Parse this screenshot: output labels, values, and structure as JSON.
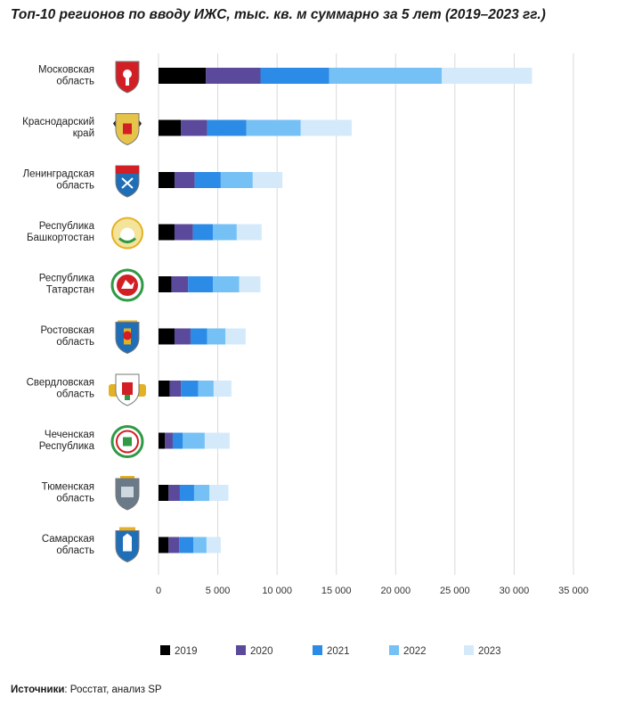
{
  "chart_data": {
    "type": "bar",
    "orientation": "horizontal",
    "stacked": true,
    "title": "Топ-10 регионов по вводу ИЖС, тыс. кв. м суммарно за 5 лет (2019–2023 гг.)",
    "categories": [
      [
        "Московская",
        "область"
      ],
      [
        "Краснодарский",
        "край"
      ],
      [
        "Ленинградская",
        "область"
      ],
      [
        "Республика",
        "Башкортостан"
      ],
      [
        "Республика",
        "Татарстан"
      ],
      [
        "Ростовская",
        "область"
      ],
      [
        "Свердловская",
        "область"
      ],
      [
        "Чеченская",
        "Республика"
      ],
      [
        "Тюменская",
        "область"
      ],
      [
        "Самарская",
        "область"
      ]
    ],
    "series": [
      {
        "name": "2019",
        "color": "#000000",
        "values": [
          4000,
          1900,
          1350,
          1350,
          1100,
          1350,
          950,
          550,
          850,
          850
        ]
      },
      {
        "name": "2020",
        "color": "#5b4a9b",
        "values": [
          4600,
          2200,
          1700,
          1550,
          1400,
          1350,
          950,
          650,
          950,
          900
        ]
      },
      {
        "name": "2021",
        "color": "#2b8be6",
        "values": [
          5800,
          3300,
          2200,
          1700,
          2100,
          1400,
          1450,
          850,
          1200,
          1200
        ]
      },
      {
        "name": "2022",
        "color": "#75c0f5",
        "values": [
          9500,
          4600,
          2700,
          2000,
          2200,
          1550,
          1300,
          1850,
          1300,
          1100
        ]
      },
      {
        "name": "2023",
        "color": "#d4eafb",
        "values": [
          7600,
          4300,
          2500,
          2100,
          1800,
          1700,
          1500,
          2100,
          1600,
          1200
        ]
      }
    ],
    "xlim": [
      0,
      35000
    ],
    "xticks": [
      "0",
      "5 000",
      "10 000",
      "15 000",
      "20 000",
      "25 000",
      "30 000",
      "35 000"
    ],
    "grid": "vertical",
    "legend_position": "bottom"
  },
  "emblems": [
    "moscow-oblast-coat-of-arms",
    "krasnodar-krai-coat-of-arms",
    "leningrad-oblast-coat-of-arms",
    "bashkortostan-emblem",
    "tatarstan-emblem",
    "rostov-oblast-coat-of-arms",
    "sverdlovsk-oblast-coat-of-arms",
    "chechen-republic-emblem",
    "tyumen-oblast-coat-of-arms",
    "samara-oblast-coat-of-arms"
  ],
  "source": {
    "label": "Источники",
    "text": ": Росстат, анализ SP"
  }
}
